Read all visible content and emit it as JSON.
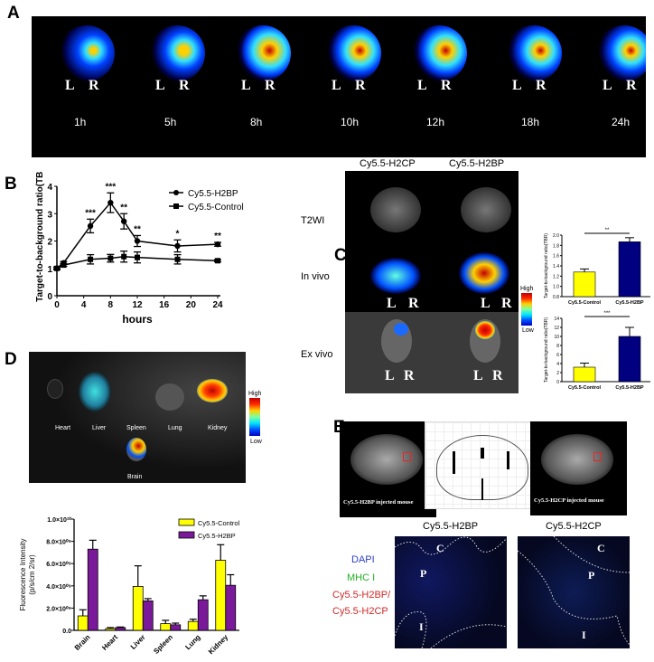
{
  "panels": {
    "a": "A",
    "b": "B",
    "c": "C",
    "d": "D",
    "e": "E"
  },
  "panel_a": {
    "times": [
      "1h",
      "5h",
      "8h",
      "10h",
      "12h",
      "18h",
      "24h"
    ],
    "left": "L",
    "right": "R"
  },
  "panel_c": {
    "columns": [
      "Cy5.5-H2CP",
      "Cy5.5-H2BP"
    ],
    "rows": [
      "T2WI",
      "In vivo",
      "Ex vivo"
    ],
    "left": "L",
    "right": "R",
    "colorbar": {
      "high": "High",
      "low": "Low"
    }
  },
  "panel_d": {
    "organs": [
      "Heart",
      "Liver",
      "Spleen",
      "Lung",
      "Kidney",
      "Brain"
    ],
    "colorbar": {
      "high": "High",
      "low": "Low"
    }
  },
  "panel_e": {
    "mri_left": "Cy5.5-H2BP injected mouse",
    "mri_right": "Cy5.5-H2CP injected mouse",
    "col_left": "Cy5.5-H2BP",
    "col_right": "Cy5.5-H2CP",
    "legend": {
      "dapi": "DAPI",
      "mhc": "MHC I",
      "probe1": "Cy5.5-H2BP/",
      "probe2": "Cy5.5-H2CP"
    },
    "regions": {
      "c": "C",
      "p": "P",
      "i": "I"
    },
    "colors": {
      "dapi": "#2a3fd0",
      "mhc": "#22b022",
      "probe": "#d02828"
    }
  },
  "chart_data": [
    {
      "id": "B",
      "type": "line",
      "xlabel": "hours",
      "ylabel": "Target-to-background ratio(TBR)",
      "xlim": [
        0,
        24
      ],
      "ylim": [
        0,
        4
      ],
      "xticks": [
        0,
        4,
        8,
        12,
        16,
        20,
        24
      ],
      "yticks": [
        0,
        1,
        2,
        3,
        4
      ],
      "legend": "top-right",
      "x": [
        0,
        1,
        5,
        8,
        10,
        12,
        18,
        24
      ],
      "series": [
        {
          "name": "Cy5.5-H2BP",
          "marker": "circle",
          "values": [
            1,
            1.2,
            2.55,
            3.4,
            2.72,
            2.0,
            1.82,
            1.88
          ],
          "errors": [
            0.05,
            0.05,
            0.25,
            0.36,
            0.28,
            0.2,
            0.22,
            0.07
          ]
        },
        {
          "name": "Cy5.5-Control",
          "marker": "square",
          "values": [
            1,
            1.12,
            1.33,
            1.37,
            1.43,
            1.4,
            1.33,
            1.28
          ],
          "errors": [
            0.03,
            0.05,
            0.17,
            0.14,
            0.2,
            0.2,
            0.17,
            0.04
          ]
        }
      ],
      "annotations": [
        {
          "x": 5,
          "text": "***"
        },
        {
          "x": 8,
          "text": "***"
        },
        {
          "x": 10,
          "text": "**"
        },
        {
          "x": 12,
          "text": "**"
        },
        {
          "x": 18,
          "text": "*"
        },
        {
          "x": 24,
          "text": "**"
        }
      ]
    },
    {
      "id": "C-invivo",
      "type": "bar",
      "ylabel": "Target-to-background ratio(TBR)",
      "ylim": [
        0.8,
        2.0
      ],
      "yticks": [
        0.8,
        1.0,
        1.2,
        1.4,
        1.6,
        1.8,
        2.0
      ],
      "categories": [
        "Cy5.5-Control",
        "Cy5.5-H2BP"
      ],
      "values": [
        1.28,
        1.87
      ],
      "errors": [
        0.06,
        0.08
      ],
      "colors": [
        "#ffff00",
        "#000080"
      ],
      "significance": "**"
    },
    {
      "id": "C-exvivo",
      "type": "bar",
      "ylabel": "Target-to-background ratio(TBR)",
      "ylim": [
        0,
        14
      ],
      "yticks": [
        0,
        2,
        4,
        6,
        8,
        10,
        12,
        14
      ],
      "categories": [
        "Cy5.5-Control",
        "Cy5.5-H2BP"
      ],
      "values": [
        3.2,
        10
      ],
      "errors": [
        0.9,
        2
      ],
      "colors": [
        "#ffff00",
        "#000080"
      ],
      "significance": "***"
    },
    {
      "id": "D",
      "type": "bar",
      "ylabel": "Fluorescence Intensity",
      "ylabel2": "(p/s/cm 2/sr)",
      "ylim": [
        0,
        10000000000.0
      ],
      "yticks": [
        0,
        2000000000.0,
        4000000000.0,
        6000000000.0,
        8000000000.0,
        10000000000.0
      ],
      "ytick_labels": [
        "0.0",
        "2.0×10⁰⁹",
        "4.0×10⁰⁹",
        "6.0×10⁰⁹",
        "8.0×10⁰⁹",
        "1.0×10¹⁰"
      ],
      "legend": "top-right",
      "categories": [
        "Brain",
        "Heart",
        "Liver",
        "Spleen",
        "Lung",
        "Kidney"
      ],
      "series": [
        {
          "name": "Cy5.5-Control",
          "color": "#ffff00",
          "values": [
            1300000000.0,
            150000000.0,
            3950000000.0,
            600000000.0,
            800000000.0,
            6300000000.0
          ],
          "errors": [
            550000000.0,
            100000000.0,
            1850000000.0,
            300000000.0,
            200000000.0,
            1400000000.0
          ]
        },
        {
          "name": "Cy5.5-H2BP",
          "color": "#7a1a9a",
          "values": [
            7300000000.0,
            250000000.0,
            2650000000.0,
            500000000.0,
            2750000000.0,
            4050000000.0
          ],
          "errors": [
            800000000.0,
            50000000.0,
            200000000.0,
            150000000.0,
            350000000.0,
            950000000.0
          ]
        }
      ]
    }
  ]
}
